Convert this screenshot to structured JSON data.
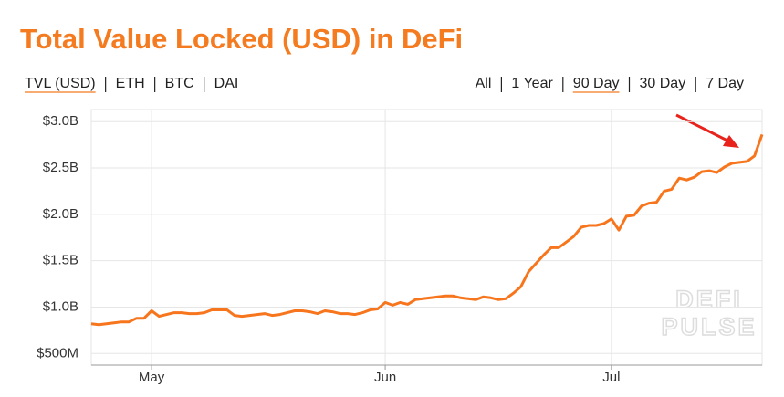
{
  "controls": {
    "left": {
      "options": [
        "TVL (USD)",
        "ETH",
        "BTC",
        "DAI"
      ],
      "active": 0
    },
    "right": {
      "options": [
        "All",
        "1 Year",
        "90 Day",
        "30 Day",
        "7 Day"
      ],
      "active": 2
    }
  },
  "watermark": [
    "DEFI",
    "PULSE"
  ],
  "chart_data": {
    "type": "line",
    "title": "Total Value Locked (USD) in DeFi",
    "x": [
      0,
      1,
      2,
      3,
      4,
      5,
      6,
      7,
      8,
      9,
      10,
      11,
      12,
      13,
      14,
      15,
      16,
      17,
      18,
      19,
      20,
      21,
      22,
      23,
      24,
      25,
      26,
      27,
      28,
      29,
      30,
      31,
      32,
      33,
      34,
      35,
      36,
      37,
      38,
      39,
      40,
      41,
      42,
      43,
      44,
      45,
      46,
      47,
      48,
      49,
      50,
      51,
      52,
      53,
      54,
      55,
      56,
      57,
      58,
      59,
      60,
      61,
      62,
      63,
      64,
      65,
      66,
      67,
      68,
      69,
      70,
      71,
      72,
      73,
      74,
      75,
      76,
      77,
      78,
      79,
      80,
      81,
      82,
      83,
      84,
      85,
      86,
      87,
      88,
      89
    ],
    "series": [
      {
        "name": "TVL (USD)",
        "color": "#f7761d",
        "values": [
          0.82,
          0.81,
          0.82,
          0.83,
          0.84,
          0.84,
          0.88,
          0.88,
          0.96,
          0.9,
          0.92,
          0.94,
          0.94,
          0.93,
          0.93,
          0.94,
          0.97,
          0.97,
          0.97,
          0.91,
          0.9,
          0.91,
          0.92,
          0.93,
          0.91,
          0.92,
          0.94,
          0.96,
          0.96,
          0.95,
          0.93,
          0.96,
          0.95,
          0.93,
          0.93,
          0.92,
          0.94,
          0.97,
          0.98,
          1.05,
          1.02,
          1.05,
          1.03,
          1.08,
          1.09,
          1.1,
          1.11,
          1.12,
          1.12,
          1.1,
          1.09,
          1.08,
          1.11,
          1.1,
          1.08,
          1.09,
          1.15,
          1.22,
          1.38,
          1.47,
          1.56,
          1.64,
          1.64,
          1.7,
          1.76,
          1.86,
          1.88,
          1.88,
          1.9,
          1.95,
          1.83,
          1.98,
          1.99,
          2.09,
          2.12,
          2.13,
          2.25,
          2.27,
          2.39,
          2.37,
          2.4,
          2.46,
          2.47,
          2.45,
          2.51,
          2.55,
          2.56,
          2.57,
          2.63,
          2.86
        ]
      }
    ],
    "xlim": [
      0,
      89
    ],
    "xticks": [
      {
        "value": 8,
        "label": "May"
      },
      {
        "value": 39,
        "label": "Jun"
      },
      {
        "value": 69,
        "label": "Jul"
      }
    ],
    "ylim": [
      0.375,
      3.13
    ],
    "yticks": [
      {
        "value": 0.5,
        "label": "$500M"
      },
      {
        "value": 1.0,
        "label": "$1.0B"
      },
      {
        "value": 1.5,
        "label": "$1.5B"
      },
      {
        "value": 2.0,
        "label": "$2.0B"
      },
      {
        "value": 2.5,
        "label": "$2.5B"
      },
      {
        "value": 3.0,
        "label": "$3.0B"
      }
    ],
    "grid": true
  }
}
